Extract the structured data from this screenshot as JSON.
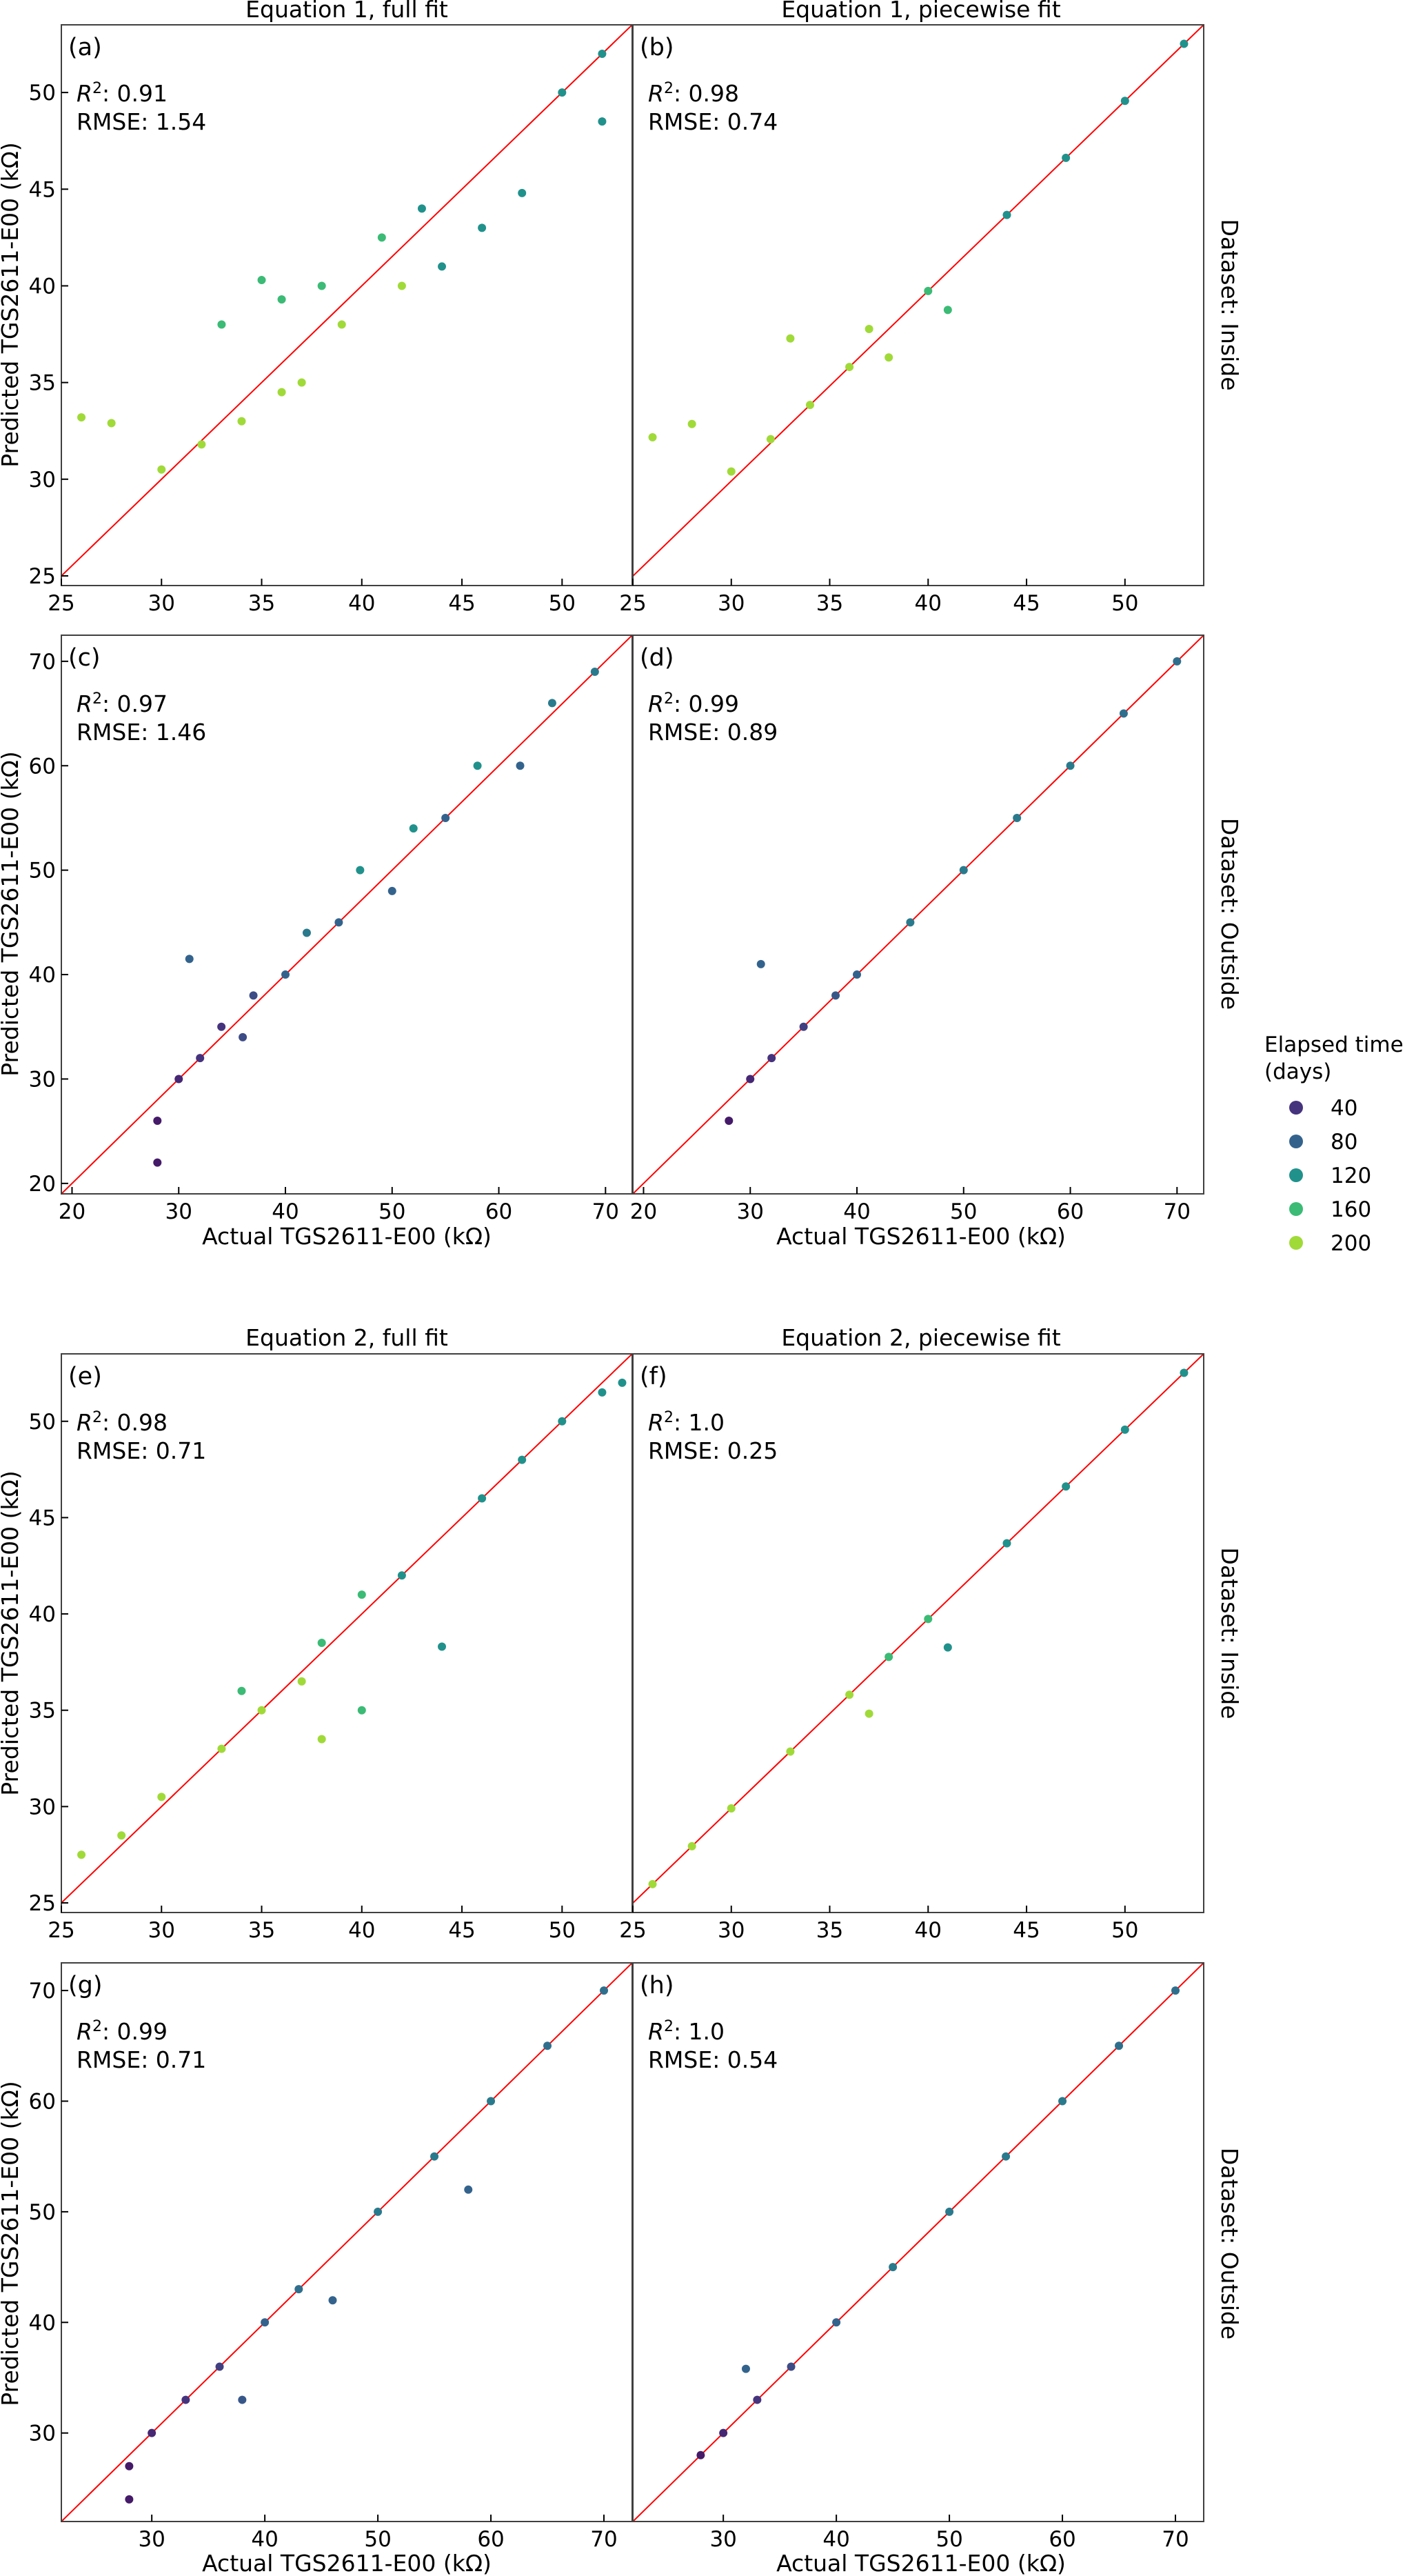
{
  "figure": {
    "x_axis_label": "Actual TGS2611-E00 (kΩ)",
    "y_axis_label": "Predicted TGS2611-E00 (kΩ)",
    "colorbar": {
      "title_line1": "Elapsed time",
      "title_line2": "(days)",
      "entries": [
        {
          "label": "40",
          "color": "#46337e"
        },
        {
          "label": "80",
          "color": "#33638d"
        },
        {
          "label": "120",
          "color": "#21918c"
        },
        {
          "label": "160",
          "color": "#3bbb75"
        },
        {
          "label": "200",
          "color": "#a0da39"
        }
      ]
    },
    "row_labels": [
      "Dataset: Inside",
      "Dataset: Outside",
      "Dataset: Inside",
      "Dataset: Outside"
    ],
    "column_titles": [
      "Equation 1, full fit",
      "Equation 1, piecewise fit",
      "Equation 2, full fit",
      "Equation 2, piecewise fit"
    ],
    "identity_line_color": "#ff0000"
  },
  "chart_data": [
    {
      "type": "scatter",
      "panel": "(a)",
      "r2_label": "R",
      "r2_value": ": 0.91",
      "rmse_text": "RMSE: 1.54",
      "xlim": [
        25,
        53.5
      ],
      "ylim": [
        24.5,
        53.5
      ],
      "xticks": [
        25,
        30,
        35,
        40,
        45,
        50
      ],
      "yticks": [
        25,
        30,
        35,
        40,
        45,
        50
      ],
      "points": [
        {
          "x": 26,
          "y": 33.2,
          "c": 200
        },
        {
          "x": 27.5,
          "y": 32.9,
          "c": 200
        },
        {
          "x": 30,
          "y": 30.5,
          "c": 200
        },
        {
          "x": 32,
          "y": 31.8,
          "c": 200
        },
        {
          "x": 34,
          "y": 33,
          "c": 200
        },
        {
          "x": 36,
          "y": 34.5,
          "c": 200
        },
        {
          "x": 37,
          "y": 35,
          "c": 200
        },
        {
          "x": 39,
          "y": 38,
          "c": 200
        },
        {
          "x": 42,
          "y": 40,
          "c": 200
        },
        {
          "x": 33,
          "y": 38,
          "c": 160
        },
        {
          "x": 35,
          "y": 40.3,
          "c": 160
        },
        {
          "x": 36,
          "y": 39.3,
          "c": 160
        },
        {
          "x": 38,
          "y": 40,
          "c": 160
        },
        {
          "x": 41,
          "y": 42.5,
          "c": 160
        },
        {
          "x": 43,
          "y": 44,
          "c": 120
        },
        {
          "x": 44,
          "y": 41,
          "c": 120
        },
        {
          "x": 46,
          "y": 43,
          "c": 120
        },
        {
          "x": 48,
          "y": 44.8,
          "c": 120
        },
        {
          "x": 50,
          "y": 50,
          "c": 120
        },
        {
          "x": 52,
          "y": 52,
          "c": 120
        },
        {
          "x": 52,
          "y": 48.5,
          "c": 120
        }
      ]
    },
    {
      "type": "scatter",
      "panel": "(b)",
      "r2_label": "R",
      "r2_value": ": 0.98",
      "rmse_text": "RMSE: 0.74",
      "xlim": [
        25,
        54
      ],
      "ylim": [
        24.5,
        54
      ],
      "xticks": [
        25,
        30,
        35,
        40,
        45,
        50
      ],
      "yticks": [],
      "points": [
        {
          "x": 26,
          "y": 32.3,
          "c": 200
        },
        {
          "x": 28,
          "y": 33,
          "c": 200
        },
        {
          "x": 30,
          "y": 30.5,
          "c": 200
        },
        {
          "x": 32,
          "y": 32.2,
          "c": 200
        },
        {
          "x": 34,
          "y": 34,
          "c": 200
        },
        {
          "x": 36,
          "y": 36,
          "c": 200
        },
        {
          "x": 37,
          "y": 38,
          "c": 200
        },
        {
          "x": 38,
          "y": 36.5,
          "c": 200
        },
        {
          "x": 33,
          "y": 37.5,
          "c": 200
        },
        {
          "x": 40,
          "y": 40,
          "c": 160
        },
        {
          "x": 41,
          "y": 39,
          "c": 160
        },
        {
          "x": 44,
          "y": 44,
          "c": 120
        },
        {
          "x": 47,
          "y": 47,
          "c": 120
        },
        {
          "x": 50,
          "y": 50,
          "c": 120
        },
        {
          "x": 53,
          "y": 53,
          "c": 120
        }
      ]
    },
    {
      "type": "scatter",
      "panel": "(c)",
      "r2_label": "R",
      "r2_value": ": 0.97",
      "rmse_text": "RMSE: 1.46",
      "xlim": [
        19,
        72.5
      ],
      "ylim": [
        19,
        72.5
      ],
      "xticks": [
        20,
        30,
        40,
        50,
        60,
        70
      ],
      "yticks": [
        20,
        30,
        40,
        50,
        60,
        70
      ],
      "points": [
        {
          "x": 28,
          "y": 22,
          "c": 20
        },
        {
          "x": 28,
          "y": 26,
          "c": 20
        },
        {
          "x": 30,
          "y": 30,
          "c": 30
        },
        {
          "x": 32,
          "y": 32,
          "c": 40
        },
        {
          "x": 34,
          "y": 35,
          "c": 40
        },
        {
          "x": 36,
          "y": 34,
          "c": 60
        },
        {
          "x": 37,
          "y": 38,
          "c": 60
        },
        {
          "x": 40,
          "y": 40,
          "c": 80
        },
        {
          "x": 42,
          "y": 44,
          "c": 100
        },
        {
          "x": 45,
          "y": 45,
          "c": 80
        },
        {
          "x": 47,
          "y": 50,
          "c": 120
        },
        {
          "x": 50,
          "y": 48,
          "c": 80
        },
        {
          "x": 52,
          "y": 54,
          "c": 120
        },
        {
          "x": 55,
          "y": 55,
          "c": 80
        },
        {
          "x": 58,
          "y": 60,
          "c": 120
        },
        {
          "x": 62,
          "y": 60,
          "c": 80
        },
        {
          "x": 65,
          "y": 66,
          "c": 100
        },
        {
          "x": 69,
          "y": 69,
          "c": 100
        },
        {
          "x": 31,
          "y": 41.5,
          "c": 80
        }
      ]
    },
    {
      "type": "scatter",
      "panel": "(d)",
      "r2_label": "R",
      "r2_value": ": 0.99",
      "rmse_text": "RMSE: 0.89",
      "xlim": [
        19,
        72.5
      ],
      "ylim": [
        19,
        72.5
      ],
      "xticks": [
        20,
        30,
        40,
        50,
        60,
        70
      ],
      "yticks": [],
      "points": [
        {
          "x": 28,
          "y": 26,
          "c": 20
        },
        {
          "x": 30,
          "y": 30,
          "c": 30
        },
        {
          "x": 32,
          "y": 32,
          "c": 40
        },
        {
          "x": 35,
          "y": 35,
          "c": 50
        },
        {
          "x": 38,
          "y": 38,
          "c": 70
        },
        {
          "x": 40,
          "y": 40,
          "c": 80
        },
        {
          "x": 45,
          "y": 45,
          "c": 100
        },
        {
          "x": 50,
          "y": 50,
          "c": 100
        },
        {
          "x": 55,
          "y": 55,
          "c": 100
        },
        {
          "x": 60,
          "y": 60,
          "c": 100
        },
        {
          "x": 65,
          "y": 65,
          "c": 90
        },
        {
          "x": 70,
          "y": 70,
          "c": 90
        },
        {
          "x": 31,
          "y": 41,
          "c": 80
        }
      ]
    },
    {
      "type": "scatter",
      "panel": "(e)",
      "r2_label": "R",
      "r2_value": ": 0.98",
      "rmse_text": "RMSE: 0.71",
      "xlim": [
        25,
        53.5
      ],
      "ylim": [
        24.5,
        53.5
      ],
      "xticks": [
        25,
        30,
        35,
        40,
        45,
        50
      ],
      "yticks": [
        25,
        30,
        35,
        40,
        45,
        50
      ],
      "points": [
        {
          "x": 26,
          "y": 27.5,
          "c": 200
        },
        {
          "x": 28,
          "y": 28.5,
          "c": 200
        },
        {
          "x": 30,
          "y": 30.5,
          "c": 200
        },
        {
          "x": 33,
          "y": 33,
          "c": 200
        },
        {
          "x": 35,
          "y": 35,
          "c": 200
        },
        {
          "x": 37,
          "y": 36.5,
          "c": 200
        },
        {
          "x": 38,
          "y": 33.5,
          "c": 200
        },
        {
          "x": 34,
          "y": 36,
          "c": 160
        },
        {
          "x": 38,
          "y": 38.5,
          "c": 160
        },
        {
          "x": 40,
          "y": 41,
          "c": 160
        },
        {
          "x": 40,
          "y": 35,
          "c": 160
        },
        {
          "x": 42,
          "y": 42,
          "c": 120
        },
        {
          "x": 44,
          "y": 38.3,
          "c": 120
        },
        {
          "x": 46,
          "y": 46,
          "c": 120
        },
        {
          "x": 48,
          "y": 48,
          "c": 120
        },
        {
          "x": 50,
          "y": 50,
          "c": 120
        },
        {
          "x": 52,
          "y": 51.5,
          "c": 120
        },
        {
          "x": 53,
          "y": 52,
          "c": 120
        }
      ]
    },
    {
      "type": "scatter",
      "panel": "(f)",
      "r2_label": "R",
      "r2_value": ": 1.0",
      "rmse_text": "RMSE: 0.25",
      "xlim": [
        25,
        54
      ],
      "ylim": [
        24.5,
        54
      ],
      "xticks": [
        25,
        30,
        35,
        40,
        45,
        50
      ],
      "yticks": [],
      "points": [
        {
          "x": 26,
          "y": 26,
          "c": 200
        },
        {
          "x": 28,
          "y": 28,
          "c": 200
        },
        {
          "x": 30,
          "y": 30,
          "c": 200
        },
        {
          "x": 33,
          "y": 33,
          "c": 200
        },
        {
          "x": 36,
          "y": 36,
          "c": 200
        },
        {
          "x": 37,
          "y": 35,
          "c": 200
        },
        {
          "x": 38,
          "y": 38,
          "c": 160
        },
        {
          "x": 40,
          "y": 40,
          "c": 160
        },
        {
          "x": 41,
          "y": 38.5,
          "c": 120
        },
        {
          "x": 44,
          "y": 44,
          "c": 120
        },
        {
          "x": 47,
          "y": 47,
          "c": 120
        },
        {
          "x": 50,
          "y": 50,
          "c": 120
        },
        {
          "x": 53,
          "y": 53,
          "c": 120
        }
      ]
    },
    {
      "type": "scatter",
      "panel": "(g)",
      "r2_label": "R",
      "r2_value": ": 0.99",
      "rmse_text": "RMSE: 0.71",
      "xlim": [
        22,
        72.5
      ],
      "ylim": [
        22,
        72.5
      ],
      "xticks": [
        30,
        40,
        50,
        60,
        70
      ],
      "yticks": [
        30,
        40,
        50,
        60,
        70
      ],
      "points": [
        {
          "x": 28,
          "y": 24,
          "c": 20
        },
        {
          "x": 28,
          "y": 27,
          "c": 20
        },
        {
          "x": 30,
          "y": 30,
          "c": 30
        },
        {
          "x": 33,
          "y": 33,
          "c": 40
        },
        {
          "x": 36,
          "y": 36,
          "c": 50
        },
        {
          "x": 38,
          "y": 33,
          "c": 70
        },
        {
          "x": 40,
          "y": 40,
          "c": 80
        },
        {
          "x": 43,
          "y": 43,
          "c": 90
        },
        {
          "x": 46,
          "y": 42,
          "c": 80
        },
        {
          "x": 50,
          "y": 50,
          "c": 100
        },
        {
          "x": 55,
          "y": 55,
          "c": 100
        },
        {
          "x": 58,
          "y": 52,
          "c": 80
        },
        {
          "x": 60,
          "y": 60,
          "c": 100
        },
        {
          "x": 65,
          "y": 65,
          "c": 90
        },
        {
          "x": 70,
          "y": 70,
          "c": 90
        }
      ]
    },
    {
      "type": "scatter",
      "panel": "(h)",
      "r2_label": "R",
      "r2_value": ": 1.0",
      "rmse_text": "RMSE: 0.54",
      "xlim": [
        22,
        72.5
      ],
      "ylim": [
        22,
        72.5
      ],
      "xticks": [
        30,
        40,
        50,
        60,
        70
      ],
      "yticks": [],
      "points": [
        {
          "x": 28,
          "y": 28,
          "c": 20
        },
        {
          "x": 30,
          "y": 30,
          "c": 30
        },
        {
          "x": 33,
          "y": 33,
          "c": 40
        },
        {
          "x": 36,
          "y": 36,
          "c": 60
        },
        {
          "x": 40,
          "y": 40,
          "c": 80
        },
        {
          "x": 45,
          "y": 45,
          "c": 100
        },
        {
          "x": 50,
          "y": 50,
          "c": 100
        },
        {
          "x": 55,
          "y": 55,
          "c": 100
        },
        {
          "x": 60,
          "y": 60,
          "c": 100
        },
        {
          "x": 65,
          "y": 65,
          "c": 90
        },
        {
          "x": 70,
          "y": 70,
          "c": 90
        },
        {
          "x": 32,
          "y": 35.8,
          "c": 80
        }
      ]
    }
  ]
}
